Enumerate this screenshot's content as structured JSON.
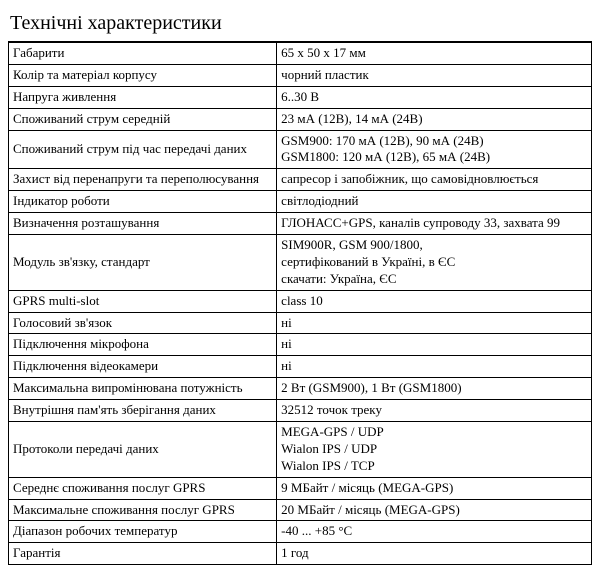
{
  "title": "Технічні характеристики",
  "rows": [
    {
      "label": "Габарити",
      "value": "65 x 50 x 17 мм"
    },
    {
      "label": "Колір та матеріал корпусу",
      "value": "чорний пластик"
    },
    {
      "label": "Напруга живлення",
      "value": "6..30 В"
    },
    {
      "label": "Споживаний струм середній",
      "value": "23 мА (12В), 14 мА (24В)"
    },
    {
      "label": "Споживаний струм під час передачі даних",
      "lines": [
        "GSM900: 170 мА (12В), 90 мА (24В)",
        "GSM1800: 120 мА (12В), 65 мА (24В)"
      ]
    },
    {
      "label": "Захист від перенапруги та переполюсування",
      "value": "сапресор і запобіжник, що самовідновлюється"
    },
    {
      "label": "Індикатор роботи",
      "value": "світлодіодний"
    },
    {
      "label": "Визначення розташування",
      "value": "ГЛОНАСС+GPS, каналів супроводу 33, захвата 99"
    },
    {
      "label": "Модуль зв'язку, стандарт",
      "lines": [
        "SIM900R, GSM 900/1800,",
        "сертифікований в Україні, в ЄС",
        "скачати: Україна, ЄС"
      ]
    },
    {
      "label": "GPRS multi-slot",
      "value": "class 10"
    },
    {
      "label": "Голосовий зв'язок",
      "value": "ні"
    },
    {
      "label": "Підключення мікрофона",
      "value": "ні"
    },
    {
      "label": "Підключення відеокамери",
      "value": "ні"
    },
    {
      "label": "Максимальна випромінювана потужність",
      "value": "2 Вт (GSM900), 1 Вт (GSM1800)"
    },
    {
      "label": "Внутрішня пам'ять зберігання даних",
      "value": "32512 точок треку"
    },
    {
      "label": "Протоколи передачі даних",
      "lines": [
        "MEGA-GPS / UDP",
        "Wialon IPS / UDP",
        "Wialon IPS / TCP"
      ]
    },
    {
      "label": "Середнє споживання послуг GPRS",
      "value": "9 МБайт / місяць (MEGA-GPS)"
    },
    {
      "label": "Максимальне споживання послуг GPRS",
      "value": "20 МБайт / місяць (MEGA-GPS)"
    },
    {
      "label": "Діапазон робочих температур",
      "value": "-40 ... +85 °C"
    },
    {
      "label": "Гарантія",
      "value": "1 год"
    }
  ],
  "style": {
    "border_color": "#000000",
    "background_color": "#ffffff",
    "text_color": "#000000",
    "title_fontsize": 20,
    "body_fontsize": 13,
    "font_family": "Times New Roman"
  }
}
